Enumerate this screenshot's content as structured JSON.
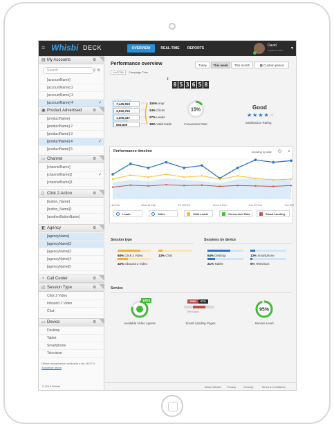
{
  "app": {
    "logo": "Whisbi",
    "product": "DECK"
  },
  "nav": {
    "items": [
      "OVERVIEW",
      "REAL-TIME",
      "REPORTS"
    ],
    "active": "OVERVIEW"
  },
  "user": {
    "name": "David",
    "email": "mydeck.com"
  },
  "sidebar": {
    "search_placeholder": "Search",
    "sections": [
      {
        "id": "accounts",
        "label": "My Accounts",
        "items": [
          "[accountName]",
          "[accountName] 2",
          "[accountName] 3",
          "[accountName] 4"
        ],
        "selected": [
          3
        ]
      },
      {
        "id": "product",
        "label": "Product Advertised",
        "items": [
          "[productName]",
          "[productName] 2",
          "[productName] 3",
          "[productName] 4",
          "[productName] 5"
        ],
        "selected": [
          3
        ]
      },
      {
        "id": "channel",
        "label": "Channel",
        "items": [
          "[channelName]",
          "[channelName]2",
          "[channelName]3"
        ],
        "selected": []
      },
      {
        "id": "click2action",
        "label": "Click 2 Action",
        "items": [
          "[button_Name]",
          "[button_Name]2",
          "[anotherButtonName]"
        ],
        "selected": []
      },
      {
        "id": "agency",
        "label": "Agency",
        "items": [
          "[agencyName]",
          "[agencyName]2",
          "[agencyName]3",
          "[agencyName]4",
          "[agencyName]5"
        ],
        "selected": [
          0,
          1
        ]
      },
      {
        "id": "callcenter",
        "label": "Call Center",
        "items": [],
        "selected": []
      },
      {
        "id": "sessiontype",
        "label": "Session Type",
        "items": [
          "Click 2 Video",
          "Inbound 2 Video",
          "Chat"
        ],
        "selected": []
      },
      {
        "id": "device",
        "label": "Device",
        "items": [
          "Desktop",
          "Tablet",
          "Smartphone",
          "Television"
        ],
        "selected": []
      }
    ],
    "last_update": "Última actualización realizada a las 18:27 h.",
    "update_link": "Actualizar ahora",
    "copyright": "© 2015 Whisbi"
  },
  "overview": {
    "title": "Performance overview",
    "campaign_date": "14:07:59",
    "campaign_label": "Campaign Time",
    "periods": [
      "Today",
      "This week",
      "This month",
      "Custom period"
    ],
    "active_period": "This week",
    "sales_counter": [
      "8",
      "5",
      "3",
      "6",
      "5",
      "8"
    ],
    "sales_label": "SALES",
    "funnel": [
      {
        "value": "7,445,553",
        "pct": "100%",
        "label": "Impr."
      },
      {
        "value": "3,932,765",
        "pct": "24%",
        "label": "Clicks"
      },
      {
        "value": "1,005,347",
        "pct": "27%",
        "label": "Leads"
      },
      {
        "value": "853,659",
        "pct": "18%",
        "label": "Valid leads"
      }
    ],
    "conversion": {
      "value": "15%",
      "fraction": 0.15,
      "label": "Conversion Rate"
    },
    "satisfaction": {
      "value": "Good",
      "stars": 4,
      "max_stars": 5,
      "label": "Satisfaction Rating"
    }
  },
  "timeline": {
    "title": "Performance timeline",
    "show_by": "showing by date",
    "legend": [
      "Leads",
      "Sales",
      "Valid Leads",
      "Conversion Rate",
      "Smart Landing"
    ],
    "x_labels": [
      "Mon 15 Feb",
      "Wed 16 Feb",
      "Fri 15 Feb",
      "Sun 19 Feb",
      "Tue 20 Feb",
      "Thu 25 Feb"
    ]
  },
  "chart_data": {
    "type": "line",
    "title": "Performance timeline",
    "categories": [
      "Mon 15 Feb",
      "",
      "Wed 16 Feb",
      "",
      "Fri 15 Feb",
      "",
      "Sun 19 Feb",
      "",
      "Tue 20 Feb",
      "",
      "Thu 25 Feb"
    ],
    "series": [
      {
        "name": "Leads",
        "color": "#2a74c4",
        "values": [
          0.62,
          0.88,
          0.78,
          0.92,
          0.78,
          0.84,
          0.52,
          0.78,
          0.98,
          0.92,
          0.96
        ]
      },
      {
        "name": "Sales",
        "color": "#cfe4f6",
        "values": [
          0.42,
          0.48,
          0.45,
          0.52,
          0.48,
          0.45,
          0.4,
          0.5,
          0.52,
          0.5,
          0.48
        ]
      },
      {
        "name": "Valid Leads",
        "color": "#f0c030",
        "values": [
          0.5,
          0.6,
          0.55,
          0.62,
          0.55,
          0.58,
          0.5,
          0.58,
          0.52,
          0.48,
          0.5
        ]
      },
      {
        "name": "Smart Landing",
        "color": "#c0504d",
        "values": [
          0.3,
          0.35,
          0.33,
          0.36,
          0.34,
          0.35,
          0.32,
          0.34,
          0.33,
          0.32,
          0.34
        ]
      }
    ],
    "ylim": [
      0,
      1
    ],
    "grid": true
  },
  "sessions": {
    "type_title": "Session type",
    "types": [
      {
        "pct": "68%",
        "label": "Click 2 Video",
        "fraction": 0.68
      },
      {
        "pct": "13%",
        "label": "Chat",
        "fraction": 0.13
      },
      {
        "pct": "32%",
        "label": "Inbound 2 Video",
        "fraction": 0.32
      }
    ],
    "device_title": "Sessions by device",
    "devices": [
      {
        "pct": "64%",
        "label": "Desktop",
        "fraction": 0.64
      },
      {
        "pct": "13%",
        "label": "Smartphone",
        "fraction": 0.13
      },
      {
        "pct": "21%",
        "label": "Tablet",
        "fraction": 0.21
      },
      {
        "pct": "6%",
        "label": "Television",
        "fraction": 0.06
      }
    ]
  },
  "service": {
    "title": "Service",
    "agents": {
      "badge": "19/24",
      "label": "Available Video Agents",
      "fraction": 0.79
    },
    "landing": {
      "a": "2000",
      "b": "67%",
      "sub": "70% Good",
      "label": "Smart Landing Pages"
    },
    "level": {
      "value": "95%",
      "fraction": 0.95,
      "label": "Service Level"
    }
  },
  "footer": {
    "links": [
      "About Whisbi",
      "Privacy",
      "Security",
      "Terms & Conditions"
    ]
  }
}
